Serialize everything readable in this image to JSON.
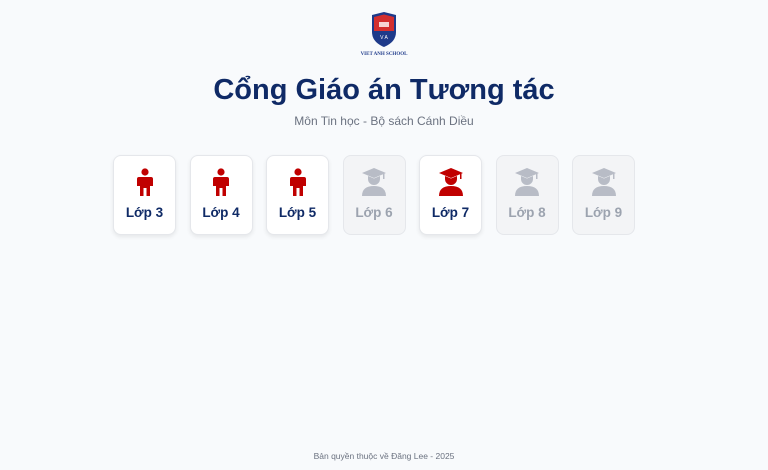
{
  "logo": {
    "text": "VIET ANH SCHOOL"
  },
  "header": {
    "title": "Cổng Giáo án Tương tác",
    "subtitle": "Môn Tin học - Bộ sách Cánh Diều"
  },
  "colors": {
    "active": "#c00000",
    "inactive": "#b8bcc6",
    "title": "#0f2a66"
  },
  "grades": [
    {
      "label": "Lớp 3",
      "icon": "child-icon",
      "active": true
    },
    {
      "label": "Lớp 4",
      "icon": "child-icon",
      "active": true
    },
    {
      "label": "Lớp 5",
      "icon": "child-icon",
      "active": true
    },
    {
      "label": "Lớp 6",
      "icon": "graduate-icon",
      "active": false
    },
    {
      "label": "Lớp 7",
      "icon": "graduate-icon",
      "active": true
    },
    {
      "label": "Lớp 8",
      "icon": "graduate-icon",
      "active": false
    },
    {
      "label": "Lớp 9",
      "icon": "graduate-icon",
      "active": false
    }
  ],
  "footer": {
    "text": "Bản quyền thuộc về Đăng Lee - 2025"
  }
}
